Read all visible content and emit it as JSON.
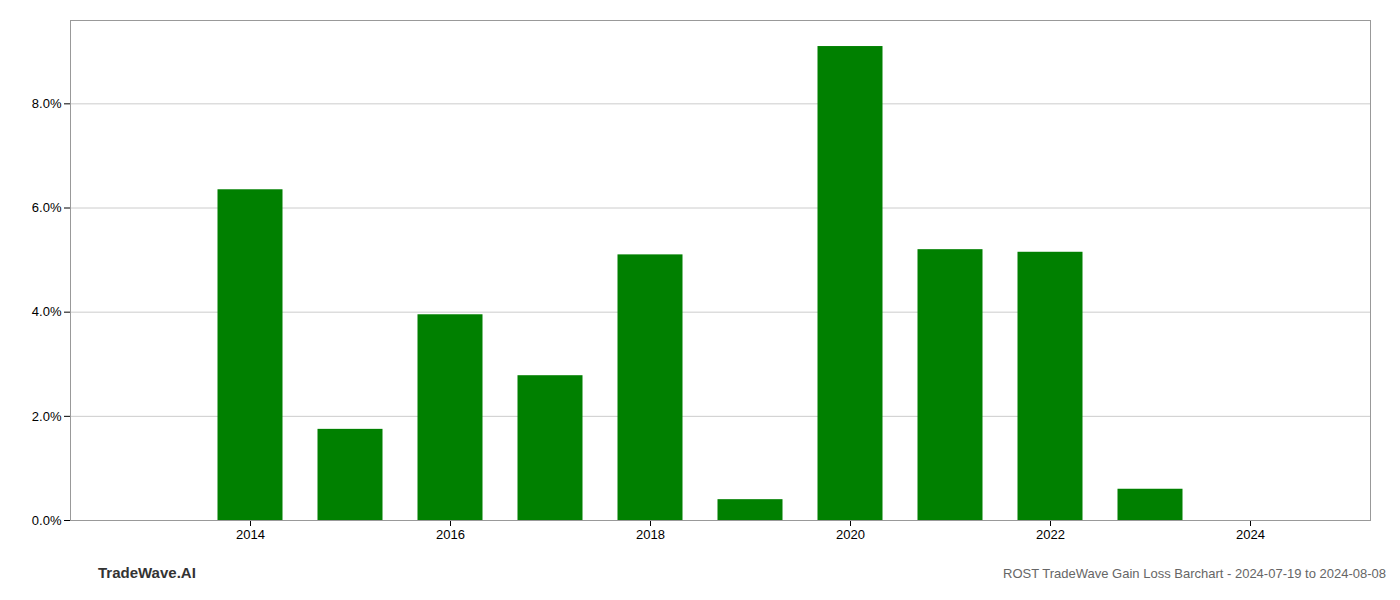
{
  "chart_data": {
    "type": "bar",
    "x": [
      2013,
      2014,
      2015,
      2016,
      2017,
      2018,
      2019,
      2020,
      2021,
      2022,
      2023,
      2024
    ],
    "values": [
      0.0,
      0.0635,
      0.0175,
      0.0395,
      0.0278,
      0.051,
      0.004,
      0.091,
      0.052,
      0.0515,
      0.006,
      0.0
    ],
    "color": "#008000",
    "xlim": [
      2012.2,
      2025.2
    ],
    "xticks": [
      2014,
      2016,
      2018,
      2020,
      2022,
      2024
    ],
    "ylim": [
      0.0,
      0.096
    ],
    "yticks": [
      {
        "value": 0.0,
        "label": "0.0%"
      },
      {
        "value": 0.02,
        "label": "2.0%"
      },
      {
        "value": 0.04,
        "label": "4.0%"
      },
      {
        "value": 0.06,
        "label": "6.0%"
      },
      {
        "value": 0.08,
        "label": "8.0%"
      }
    ],
    "grid": true,
    "annotations": [
      "TradeWave.AI",
      "ROST TradeWave Gain Loss Barchart - 2024-07-19 to 2024-08-08"
    ]
  }
}
